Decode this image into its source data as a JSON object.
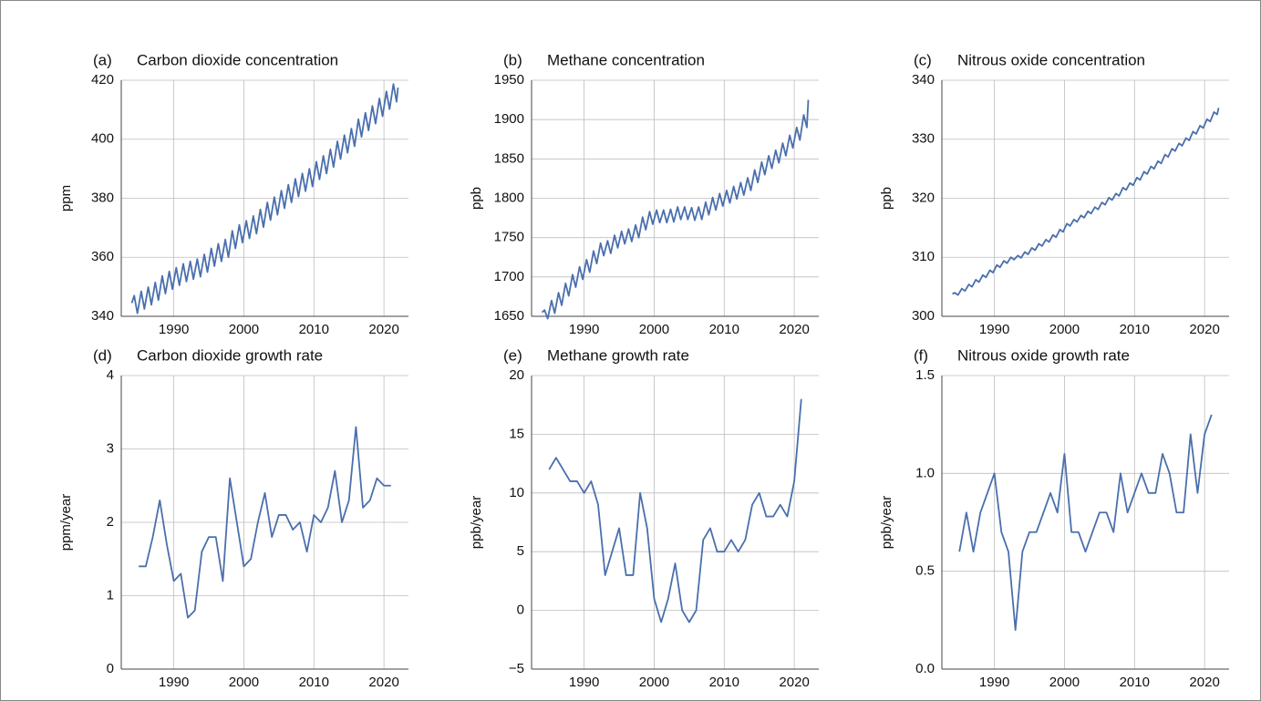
{
  "chart_data": [
    {
      "type": "line",
      "panel_label": "(a)",
      "title": "Carbon dioxide concentration",
      "ylabel": "ppm",
      "color": "#4a6fad",
      "xlim": [
        1982.5,
        2023.5
      ],
      "xticks": [
        1990,
        2000,
        2010,
        2020
      ],
      "ylim": [
        340,
        420
      ],
      "yticks": [
        340,
        360,
        380,
        400,
        420
      ],
      "grid": true,
      "x": [
        1984.0,
        1984.35,
        1984.8,
        1985.35,
        1985.8,
        1986.35,
        1986.8,
        1987.35,
        1987.8,
        1988.35,
        1988.8,
        1989.35,
        1989.8,
        1990.35,
        1990.8,
        1991.35,
        1991.8,
        1992.35,
        1992.8,
        1993.35,
        1993.8,
        1994.35,
        1994.8,
        1995.35,
        1995.8,
        1996.35,
        1996.8,
        1997.35,
        1997.8,
        1998.35,
        1998.8,
        1999.35,
        1999.8,
        2000.35,
        2000.8,
        2001.35,
        2001.8,
        2002.35,
        2002.8,
        2003.35,
        2003.8,
        2004.35,
        2004.8,
        2005.35,
        2005.8,
        2006.35,
        2006.8,
        2007.35,
        2007.8,
        2008.35,
        2008.8,
        2009.35,
        2009.8,
        2010.35,
        2010.8,
        2011.35,
        2011.8,
        2012.35,
        2012.8,
        2013.35,
        2013.8,
        2014.35,
        2014.8,
        2015.35,
        2015.8,
        2016.35,
        2016.8,
        2017.35,
        2017.8,
        2018.35,
        2018.8,
        2019.35,
        2019.8,
        2020.35,
        2020.8,
        2021.35,
        2021.8,
        2022.0
      ],
      "values": [
        344.5,
        347.0,
        341.0,
        348.5,
        342.5,
        349.9,
        343.9,
        351.5,
        345.5,
        353.7,
        347.7,
        355.2,
        349.2,
        356.5,
        350.5,
        357.8,
        351.8,
        358.6,
        352.6,
        359.4,
        353.4,
        361.0,
        355.0,
        363.0,
        357.0,
        364.6,
        358.6,
        366.0,
        360.0,
        369.0,
        363.0,
        371.0,
        365.0,
        372.4,
        366.4,
        374.0,
        368.0,
        376.2,
        370.2,
        378.6,
        372.6,
        380.4,
        374.4,
        382.6,
        376.6,
        384.6,
        378.6,
        386.6,
        380.6,
        388.4,
        382.4,
        390.0,
        384.0,
        392.4,
        386.4,
        394.4,
        388.4,
        396.6,
        390.6,
        399.3,
        393.3,
        401.4,
        395.4,
        403.6,
        397.6,
        406.8,
        400.8,
        409.0,
        403.0,
        411.3,
        405.3,
        413.8,
        407.8,
        416.2,
        410.2,
        418.7,
        412.7,
        417.5
      ]
    },
    {
      "type": "line",
      "panel_label": "(b)",
      "title": "Methane concentration",
      "ylabel": "ppb",
      "color": "#4a6fad",
      "xlim": [
        1982.5,
        2023.5
      ],
      "xticks": [
        1990,
        2000,
        2010,
        2020
      ],
      "ylim": [
        1650,
        1950
      ],
      "yticks": [
        1650,
        1700,
        1750,
        1800,
        1850,
        1900,
        1950
      ],
      "grid": true,
      "x": [
        1984.0,
        1984.35,
        1984.8,
        1985.35,
        1985.8,
        1986.35,
        1986.8,
        1987.35,
        1987.8,
        1988.35,
        1988.8,
        1989.35,
        1989.8,
        1990.35,
        1990.8,
        1991.35,
        1991.8,
        1992.35,
        1992.8,
        1993.35,
        1993.8,
        1994.35,
        1994.8,
        1995.35,
        1995.8,
        1996.35,
        1996.8,
        1997.35,
        1997.8,
        1998.35,
        1998.8,
        1999.35,
        1999.8,
        2000.35,
        2000.8,
        2001.35,
        2001.8,
        2002.35,
        2002.8,
        2003.35,
        2003.8,
        2004.35,
        2004.8,
        2005.35,
        2005.8,
        2006.35,
        2006.8,
        2007.35,
        2007.8,
        2008.35,
        2008.8,
        2009.35,
        2009.8,
        2010.35,
        2010.8,
        2011.35,
        2011.8,
        2012.35,
        2012.8,
        2013.35,
        2013.8,
        2014.35,
        2014.8,
        2015.35,
        2015.8,
        2016.35,
        2016.8,
        2017.35,
        2017.8,
        2018.35,
        2018.8,
        2019.35,
        2019.8,
        2020.35,
        2020.8,
        2021.35,
        2021.8,
        2022.0
      ],
      "values": [
        1655,
        1658,
        1647,
        1670,
        1654,
        1680,
        1664,
        1692,
        1676,
        1703,
        1687,
        1713,
        1697,
        1722,
        1706,
        1733,
        1717,
        1743,
        1727,
        1746,
        1730,
        1753,
        1737,
        1758,
        1742,
        1761,
        1745,
        1766,
        1750,
        1776,
        1760,
        1783,
        1767,
        1785,
        1769,
        1785,
        1769,
        1786,
        1770,
        1789,
        1773,
        1789,
        1773,
        1788,
        1772,
        1789,
        1773,
        1795,
        1779,
        1801,
        1785,
        1806,
        1790,
        1810,
        1794,
        1815,
        1799,
        1820,
        1804,
        1826,
        1810,
        1836,
        1820,
        1846,
        1830,
        1854,
        1838,
        1861,
        1845,
        1870,
        1854,
        1880,
        1864,
        1890,
        1874,
        1906,
        1890,
        1925
      ]
    },
    {
      "type": "line",
      "panel_label": "(c)",
      "title": "Nitrous oxide concentration",
      "ylabel": "ppb",
      "color": "#4a6fad",
      "xlim": [
        1982.5,
        2023.5
      ],
      "xticks": [
        1990,
        2000,
        2010,
        2020
      ],
      "ylim": [
        300,
        340
      ],
      "yticks": [
        300,
        310,
        320,
        330,
        340
      ],
      "grid": true,
      "x": [
        1984.0,
        1984.35,
        1984.8,
        1985.35,
        1985.8,
        1986.35,
        1986.8,
        1987.35,
        1987.8,
        1988.35,
        1988.8,
        1989.35,
        1989.8,
        1990.35,
        1990.8,
        1991.35,
        1991.8,
        1992.35,
        1992.8,
        1993.35,
        1993.8,
        1994.35,
        1994.8,
        1995.35,
        1995.8,
        1996.35,
        1996.8,
        1997.35,
        1997.8,
        1998.35,
        1998.8,
        1999.35,
        1999.8,
        2000.35,
        2000.8,
        2001.35,
        2001.8,
        2002.35,
        2002.8,
        2003.35,
        2003.8,
        2004.35,
        2004.8,
        2005.35,
        2005.8,
        2006.35,
        2006.8,
        2007.35,
        2007.8,
        2008.35,
        2008.8,
        2009.35,
        2009.8,
        2010.35,
        2010.8,
        2011.35,
        2011.8,
        2012.35,
        2012.8,
        2013.35,
        2013.8,
        2014.35,
        2014.8,
        2015.35,
        2015.8,
        2016.35,
        2016.8,
        2017.35,
        2017.8,
        2018.35,
        2018.8,
        2019.35,
        2019.8,
        2020.35,
        2020.8,
        2021.35,
        2021.8,
        2022.0
      ],
      "values": [
        303.8,
        304.0,
        303.6,
        304.7,
        304.3,
        305.4,
        305.0,
        306.2,
        305.8,
        307.0,
        306.6,
        307.8,
        307.4,
        308.7,
        308.3,
        309.4,
        309.0,
        310.0,
        309.6,
        310.3,
        309.9,
        310.9,
        310.5,
        311.6,
        311.2,
        312.3,
        311.9,
        313.0,
        312.6,
        313.8,
        313.4,
        314.7,
        314.3,
        315.7,
        315.3,
        316.4,
        316.0,
        317.1,
        316.7,
        317.8,
        317.4,
        318.5,
        318.1,
        319.3,
        318.9,
        320.1,
        319.7,
        320.8,
        320.4,
        321.8,
        321.4,
        322.6,
        322.2,
        323.5,
        323.1,
        324.5,
        324.1,
        325.4,
        325.0,
        326.3,
        325.9,
        327.4,
        327.0,
        328.4,
        328.0,
        329.3,
        328.9,
        330.2,
        329.8,
        331.3,
        330.9,
        332.3,
        331.9,
        333.4,
        333.0,
        334.6,
        334.2,
        335.3
      ]
    },
    {
      "type": "line",
      "panel_label": "(d)",
      "title": "Carbon dioxide growth rate",
      "ylabel": "ppm/year",
      "color": "#4a6fad",
      "xlim": [
        1982.5,
        2023.5
      ],
      "xticks": [
        1990,
        2000,
        2010,
        2020
      ],
      "ylim": [
        0,
        4
      ],
      "yticks": [
        0,
        1,
        2,
        3,
        4
      ],
      "grid": true,
      "x": [
        1985,
        1986,
        1987,
        1988,
        1989,
        1990,
        1991,
        1992,
        1993,
        1994,
        1995,
        1996,
        1997,
        1998,
        1999,
        2000,
        2001,
        2002,
        2003,
        2004,
        2005,
        2006,
        2007,
        2008,
        2009,
        2010,
        2011,
        2012,
        2013,
        2014,
        2015,
        2016,
        2017,
        2018,
        2019,
        2020,
        2021
      ],
      "values": [
        1.4,
        1.4,
        1.8,
        2.3,
        1.7,
        1.2,
        1.3,
        0.7,
        0.8,
        1.6,
        1.8,
        1.8,
        1.2,
        2.6,
        2.0,
        1.4,
        1.5,
        2.0,
        2.4,
        1.8,
        2.1,
        2.1,
        1.9,
        2.0,
        1.6,
        2.1,
        2.0,
        2.2,
        2.7,
        2.0,
        2.3,
        3.3,
        2.2,
        2.3,
        2.6,
        2.5,
        2.5
      ]
    },
    {
      "type": "line",
      "panel_label": "(e)",
      "title": "Methane growth rate",
      "ylabel": "ppb/year",
      "color": "#4a6fad",
      "xlim": [
        1982.5,
        2023.5
      ],
      "xticks": [
        1990,
        2000,
        2010,
        2020
      ],
      "ylim": [
        -5,
        20
      ],
      "yticks": [
        {
          "value": -5,
          "label": "−5"
        },
        0,
        5,
        10,
        15,
        20
      ],
      "grid": true,
      "x": [
        1985,
        1986,
        1987,
        1988,
        1989,
        1990,
        1991,
        1992,
        1993,
        1994,
        1995,
        1996,
        1997,
        1998,
        1999,
        2000,
        2001,
        2002,
        2003,
        2004,
        2005,
        2006,
        2007,
        2008,
        2009,
        2010,
        2011,
        2012,
        2013,
        2014,
        2015,
        2016,
        2017,
        2018,
        2019,
        2020,
        2021
      ],
      "values": [
        12,
        13,
        12,
        11,
        11,
        10,
        11,
        9,
        3,
        5,
        7,
        3,
        3,
        10,
        7,
        1,
        -1,
        1,
        4,
        0,
        -1,
        0,
        6,
        7,
        5,
        5,
        6,
        5,
        6,
        9,
        10,
        8,
        8,
        9,
        8,
        11,
        18
      ]
    },
    {
      "type": "line",
      "panel_label": "(f)",
      "title": "Nitrous oxide growth rate",
      "ylabel": "ppb/year",
      "color": "#4a6fad",
      "xlim": [
        1982.5,
        2023.5
      ],
      "xticks": [
        1990,
        2000,
        2010,
        2020
      ],
      "ylim": [
        0,
        1.5
      ],
      "yticks": [
        {
          "value": 0,
          "label": "0.0"
        },
        0.5,
        {
          "value": 1,
          "label": "1.0"
        },
        1.5
      ],
      "grid": true,
      "x": [
        1985,
        1986,
        1987,
        1988,
        1989,
        1990,
        1991,
        1992,
        1993,
        1994,
        1995,
        1996,
        1997,
        1998,
        1999,
        2000,
        2001,
        2002,
        2003,
        2004,
        2005,
        2006,
        2007,
        2008,
        2009,
        2010,
        2011,
        2012,
        2013,
        2014,
        2015,
        2016,
        2017,
        2018,
        2019,
        2020,
        2021
      ],
      "values": [
        0.6,
        0.8,
        0.6,
        0.8,
        0.9,
        1.0,
        0.7,
        0.6,
        0.2,
        0.6,
        0.7,
        0.7,
        0.8,
        0.9,
        0.8,
        1.1,
        0.7,
        0.7,
        0.6,
        0.7,
        0.8,
        0.8,
        0.7,
        1.0,
        0.8,
        0.9,
        1.0,
        0.9,
        0.9,
        1.1,
        1.0,
        0.8,
        0.8,
        1.2,
        0.9,
        1.2,
        1.3
      ]
    }
  ]
}
